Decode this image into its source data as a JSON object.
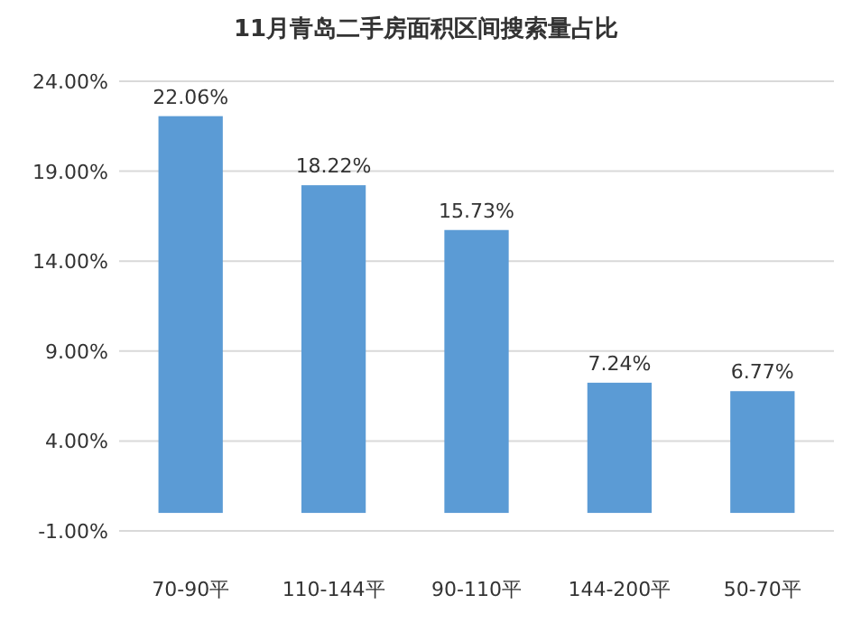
{
  "chart_data": {
    "type": "bar",
    "title": "11月青岛二手房面积区间搜索量占比",
    "categories": [
      "70-90平",
      "110-144平",
      "90-110平",
      "144-200平",
      "50-70平"
    ],
    "values": [
      22.06,
      18.22,
      15.73,
      7.24,
      6.77
    ],
    "value_labels": [
      "22.06%",
      "18.22%",
      "15.73%",
      "7.24%",
      "6.77%"
    ],
    "color": "#5b9bd5",
    "ylim": [
      -1,
      24
    ],
    "yticks": [
      {
        "value": -1,
        "label": "-1.00%"
      },
      {
        "value": 4,
        "label": "4.00%"
      },
      {
        "value": 9,
        "label": "9.00%"
      },
      {
        "value": 14,
        "label": "14.00%"
      },
      {
        "value": 19,
        "label": "19.00%"
      },
      {
        "value": 24,
        "label": "24.00%"
      }
    ],
    "grid": "y"
  }
}
